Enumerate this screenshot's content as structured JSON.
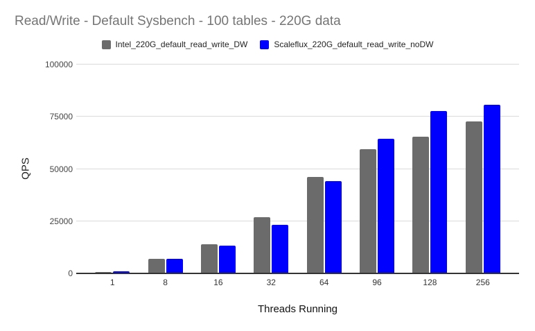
{
  "chart_data": {
    "type": "bar",
    "title": "Read/Write - Default Sysbench - 100 tables - 220G data",
    "xlabel": "Threads Running",
    "ylabel": "QPS",
    "categories": [
      "1",
      "8",
      "16",
      "32",
      "64",
      "96",
      "128",
      "256"
    ],
    "series": [
      {
        "name": "Intel_220G_default_read_write_DW",
        "color": "#6b6b6b",
        "values": [
          800,
          6900,
          14100,
          26900,
          46300,
          59500,
          65400,
          72800
        ]
      },
      {
        "name": "Scaleflux_220G_default_read_write_noDW",
        "color": "#0000fe",
        "values": [
          900,
          6900,
          13400,
          23400,
          44100,
          64300,
          77800,
          80600
        ]
      }
    ],
    "ylim": [
      0,
      100000
    ],
    "yticks": [
      0,
      25000,
      50000,
      75000,
      100000
    ],
    "grid": true,
    "legend_position": "top",
    "colors": {
      "title_text": "#757575",
      "tick_text": "#444444",
      "gridline": "#dadada",
      "axis_line": "#333333",
      "background": "#ffffff"
    }
  }
}
